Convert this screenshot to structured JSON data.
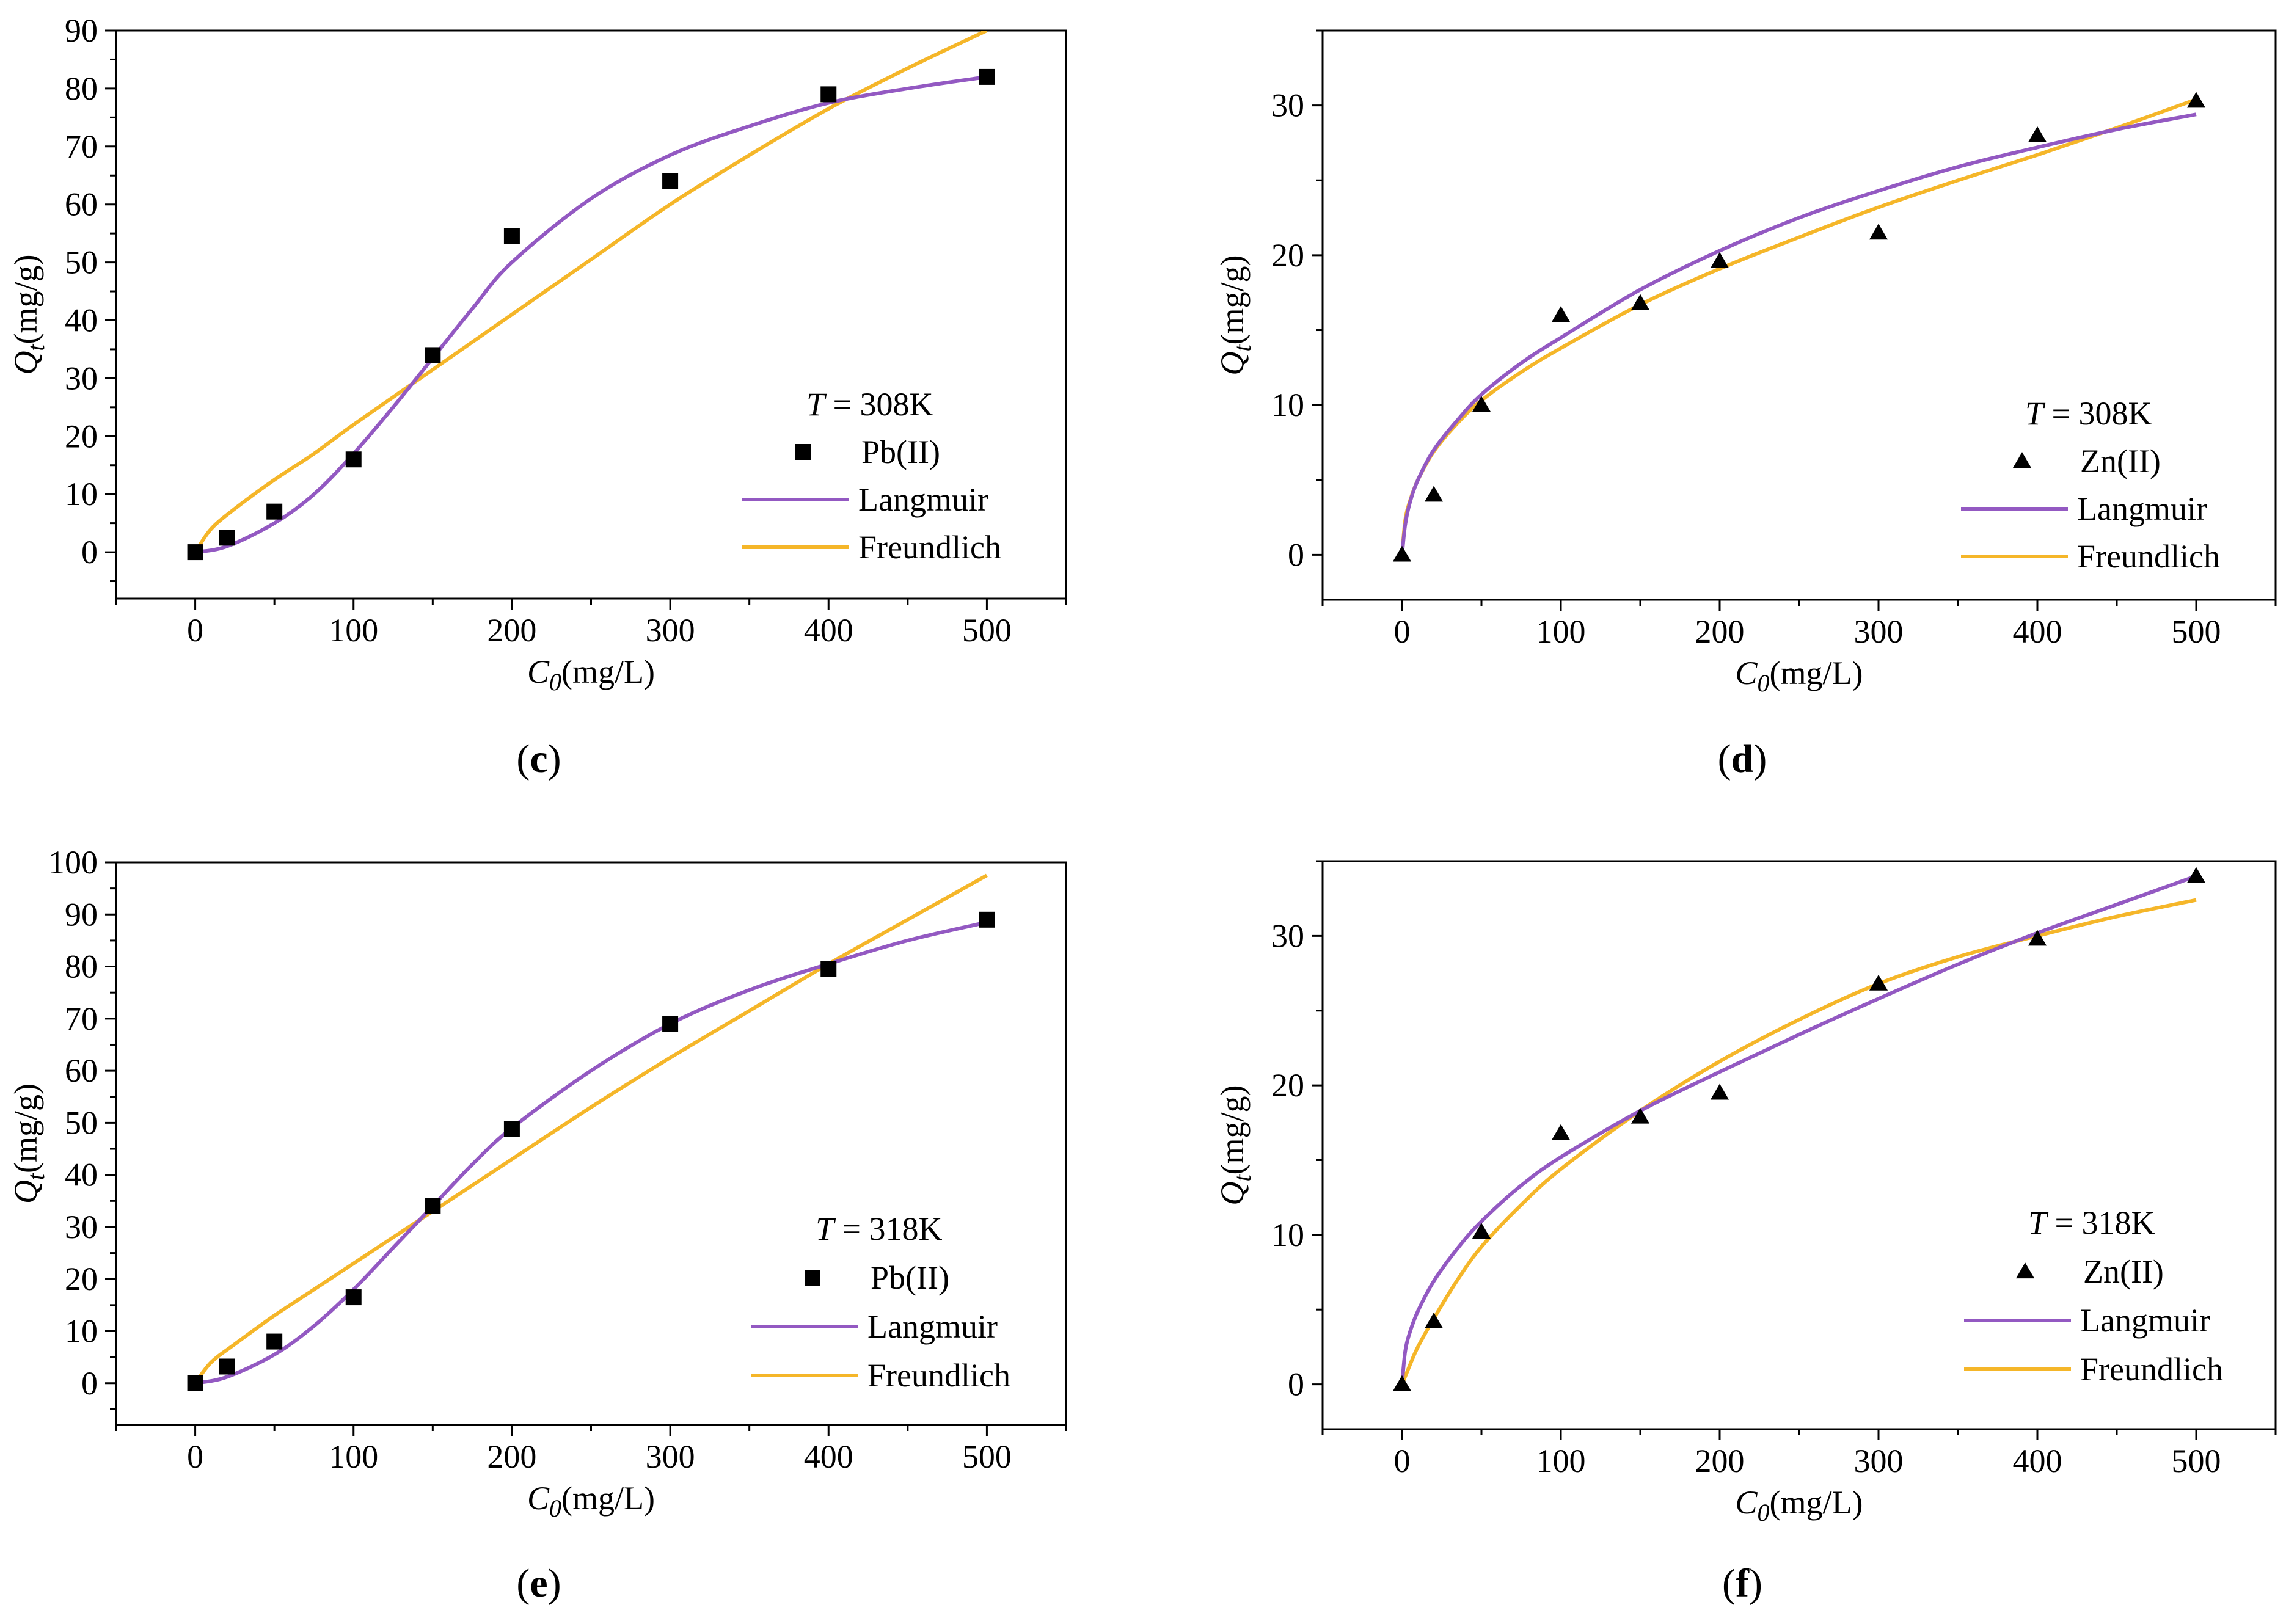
{
  "chart_data": [
    {
      "id": "c",
      "type": "scatter",
      "caption": "c",
      "marker": "square",
      "xlabel_var": "C",
      "xlabel_sub": "0",
      "xlabel_unit": "(mg/L)",
      "ylabel_var": "Q",
      "ylabel_sub": "t",
      "ylabel_unit": "(mg/g)",
      "xlim": [
        -50,
        550
      ],
      "ylim": [
        -8,
        90
      ],
      "xticks": [
        0,
        100,
        200,
        300,
        400,
        500
      ],
      "yticks": [
        0,
        10,
        20,
        30,
        40,
        50,
        60,
        70,
        80,
        90
      ],
      "legend": {
        "temp_var": "T",
        "temp_text": " = 308K",
        "points": "Pb(II)",
        "line1": "Langmuir",
        "line2": "Freundlich"
      },
      "points": {
        "x": [
          0,
          20,
          50,
          100,
          150,
          200,
          300,
          400,
          500
        ],
        "y": [
          0,
          2.5,
          7,
          16,
          34,
          54.5,
          64,
          79,
          82
        ]
      },
      "langmuir": {
        "x": [
          0,
          20,
          50,
          75,
          100,
          125,
          150,
          175,
          200,
          250,
          300,
          350,
          400,
          450,
          500
        ],
        "y": [
          0,
          1,
          5,
          10,
          17,
          25,
          33.5,
          42,
          50,
          61,
          68.5,
          73.5,
          77.5,
          80,
          82
        ]
      },
      "freundlich": {
        "x": [
          0,
          10,
          25,
          50,
          75,
          100,
          150,
          200,
          250,
          300,
          350,
          400,
          450,
          500
        ],
        "y": [
          0,
          4,
          7.5,
          12.5,
          17,
          22,
          31.5,
          41,
          50.5,
          60,
          68.5,
          76.5,
          83.5,
          90
        ]
      }
    },
    {
      "id": "d",
      "type": "scatter",
      "caption": "d",
      "marker": "triangle",
      "xlabel_var": "C",
      "xlabel_sub": "0",
      "xlabel_unit": "(mg/L)",
      "ylabel_var": "Q",
      "ylabel_sub": "t",
      "ylabel_unit": "(mg/g)",
      "xlim": [
        -50,
        550
      ],
      "ylim": [
        -3,
        35
      ],
      "xticks": [
        0,
        100,
        200,
        300,
        400,
        500
      ],
      "yticks": [
        0,
        10,
        20,
        30
      ],
      "legend": {
        "temp_var": "T",
        "temp_text": " = 308K",
        "points": "Zn(II)",
        "line1": "Langmuir",
        "line2": "Freundlich"
      },
      "points": {
        "x": [
          0,
          20,
          50,
          100,
          150,
          200,
          300,
          400,
          500
        ],
        "y": [
          0,
          4,
          10,
          16,
          16.8,
          19.6,
          21.5,
          28,
          30.3
        ]
      },
      "langmuir": {
        "x": [
          0,
          2,
          5,
          10,
          20,
          35,
          50,
          75,
          100,
          150,
          200,
          250,
          300,
          350,
          400,
          450,
          500
        ],
        "y": [
          0,
          2,
          3.5,
          5,
          7,
          9,
          10.7,
          12.8,
          14.5,
          17.7,
          20.3,
          22.5,
          24.3,
          25.9,
          27.2,
          28.4,
          29.4
        ]
      },
      "freundlich": {
        "x": [
          0,
          2,
          5,
          10,
          20,
          35,
          50,
          75,
          100,
          150,
          200,
          250,
          300,
          350,
          400,
          450,
          500
        ],
        "y": [
          0,
          2.3,
          3.6,
          5,
          6.9,
          8.8,
          10.3,
          12.2,
          13.8,
          16.7,
          19.1,
          21.2,
          23.2,
          25,
          26.7,
          28.5,
          30.4
        ]
      }
    },
    {
      "id": "e",
      "type": "scatter",
      "caption": "e",
      "marker": "square",
      "xlabel_var": "C",
      "xlabel_sub": "0",
      "xlabel_unit": "(mg/L)",
      "ylabel_var": "Q",
      "ylabel_sub": "t",
      "ylabel_unit": "(mg/g)",
      "xlim": [
        -50,
        550
      ],
      "ylim": [
        -8,
        100
      ],
      "xticks": [
        0,
        100,
        200,
        300,
        400,
        500
      ],
      "yticks": [
        0,
        10,
        20,
        30,
        40,
        50,
        60,
        70,
        80,
        90,
        100
      ],
      "legend": {
        "temp_var": "T",
        "temp_text": " = 318K",
        "points": "Pb(II)",
        "line1": "Langmuir",
        "line2": "Freundlich"
      },
      "points": {
        "x": [
          0,
          20,
          50,
          100,
          150,
          200,
          300,
          400,
          500
        ],
        "y": [
          0,
          3.2,
          8,
          16.5,
          34,
          48.8,
          69,
          79.5,
          89
        ]
      },
      "langmuir": {
        "x": [
          0,
          20,
          50,
          75,
          100,
          125,
          150,
          175,
          200,
          250,
          300,
          350,
          400,
          450,
          500
        ],
        "y": [
          0,
          1.2,
          5.5,
          11,
          18,
          26,
          34,
          42,
          49,
          60,
          69,
          75.5,
          80.5,
          85,
          88.5
        ]
      },
      "freundlich": {
        "x": [
          0,
          10,
          25,
          50,
          75,
          100,
          150,
          200,
          250,
          300,
          350,
          400,
          450,
          500
        ],
        "y": [
          0,
          4,
          7.5,
          13,
          18,
          23,
          33,
          43,
          53,
          62.5,
          71.5,
          80.5,
          89,
          97.5
        ]
      }
    },
    {
      "id": "f",
      "type": "scatter",
      "caption": "f",
      "marker": "triangle",
      "xlabel_var": "C",
      "xlabel_sub": "0",
      "xlabel_unit": "(mg/L)",
      "ylabel_var": "Q",
      "ylabel_sub": "t",
      "ylabel_unit": "(mg/g)",
      "xlim": [
        -50,
        550
      ],
      "ylim": [
        -3,
        35
      ],
      "xticks": [
        0,
        100,
        200,
        300,
        400,
        500
      ],
      "yticks": [
        0,
        10,
        20,
        30
      ],
      "legend": {
        "temp_var": "T",
        "temp_text": " = 318K",
        "points": "Zn(II)",
        "line1": "Langmuir",
        "line2": "Freundlich"
      },
      "points": {
        "x": [
          0,
          20,
          50,
          100,
          150,
          200,
          300,
          400,
          500
        ],
        "y": [
          0,
          4.2,
          10.2,
          16.8,
          17.9,
          19.5,
          26.8,
          29.8,
          34
        ]
      },
      "langmuir": {
        "x": [
          0,
          2,
          5,
          10,
          20,
          35,
          50,
          75,
          100,
          150,
          200,
          250,
          300,
          350,
          400,
          450,
          500
        ],
        "y": [
          0,
          2.2,
          3.5,
          4.9,
          6.9,
          9.1,
          10.9,
          13.3,
          15.2,
          18.3,
          20.9,
          23.4,
          25.8,
          28.1,
          30.2,
          32.1,
          34
        ]
      },
      "freundlich": {
        "x": [
          0,
          5,
          10,
          20,
          35,
          50,
          75,
          100,
          150,
          200,
          250,
          300,
          350,
          400,
          450,
          500
        ],
        "y": [
          0,
          1.3,
          2.5,
          4.4,
          7,
          9.2,
          12,
          14.4,
          18.3,
          21.6,
          24.4,
          26.8,
          28.6,
          30,
          31.3,
          32.4
        ]
      }
    }
  ],
  "colors": {
    "langmuir": "#9359C2",
    "freundlich": "#F5B629",
    "marker": "#000000"
  }
}
